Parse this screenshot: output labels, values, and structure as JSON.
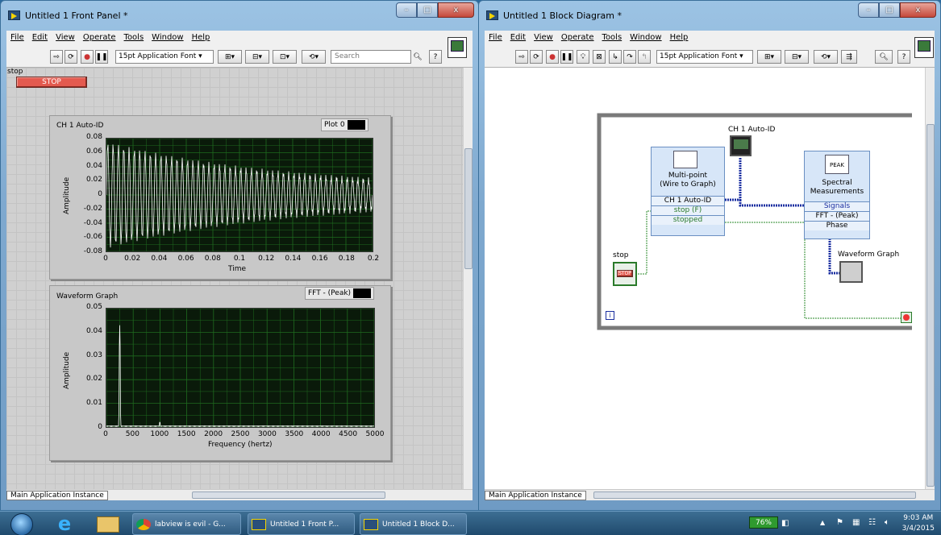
{
  "front_panel": {
    "title": "Untitled 1 Front Panel *",
    "menus": [
      "File",
      "Edit",
      "View",
      "Operate",
      "Tools",
      "Window",
      "Help"
    ],
    "font_label": "15pt Application Font",
    "search_placeholder": "Search",
    "stop_label": "stop",
    "stop_button_text": "STOP",
    "graph1": {
      "label": "CH 1 Auto-ID",
      "legend": "Plot 0",
      "ylabel": "Amplitude",
      "xlabel": "Time",
      "yticks": [
        "0.08",
        "0.06",
        "0.04",
        "0.02",
        "0",
        "-0.02",
        "-0.04",
        "-0.06",
        "-0.08"
      ],
      "xticks": [
        "0",
        "0.02",
        "0.04",
        "0.06",
        "0.08",
        "0.1",
        "0.12",
        "0.14",
        "0.16",
        "0.18",
        "0.2"
      ]
    },
    "graph2": {
      "label": "Waveform Graph",
      "legend": "FFT - (Peak)",
      "ylabel": "Amplitude",
      "xlabel": "Frequency (hertz)",
      "yticks": [
        "0.05",
        "0.04",
        "0.03",
        "0.02",
        "0.01",
        "0"
      ],
      "xticks": [
        "0",
        "500",
        "1000",
        "1500",
        "2000",
        "2500",
        "3000",
        "3500",
        "4000",
        "4500",
        "5000"
      ]
    },
    "instance": "Main Application Instance"
  },
  "block_diagram": {
    "title": "Untitled 1 Block Diagram *",
    "menus": [
      "File",
      "Edit",
      "View",
      "Operate",
      "Tools",
      "Window",
      "Help"
    ],
    "font_label": "15pt Application Font",
    "ch1_label": "CH 1 Auto-ID",
    "multipoint": {
      "title": "Multi-point\n(Wire to Graph)",
      "rows": [
        "CH 1 Auto-ID",
        "stop (F)",
        "stopped"
      ]
    },
    "spectral": {
      "title": "Spectral\nMeasurements",
      "rows": [
        "Signals",
        "FFT - (Peak)",
        "Phase"
      ],
      "icon_text": "PEAK"
    },
    "waveform_label": "Waveform Graph",
    "stop_label": "stop",
    "stop_icon_text": "STOP",
    "iter_label": "i",
    "instance": "Main Application Instance"
  },
  "taskbar": {
    "items": [
      {
        "label": "labview is evil - G...",
        "icon": "chrome-icon"
      },
      {
        "label": "Untitled 1 Front P...",
        "icon": "labview-icon"
      },
      {
        "label": "Untitled 1 Block D...",
        "icon": "labview-icon"
      }
    ],
    "battery": "76%",
    "time": "9:03 AM",
    "date": "3/4/2015"
  },
  "colors": {
    "stop_red": "#e35a4f",
    "plot_bg": "#0a1a0a",
    "grid": "#1e6a1e",
    "trace": "#ffffff",
    "wire_blue": "#1a2ea0",
    "wire_green": "#2a8a2a",
    "loop_gray": "#7a7a7a"
  }
}
